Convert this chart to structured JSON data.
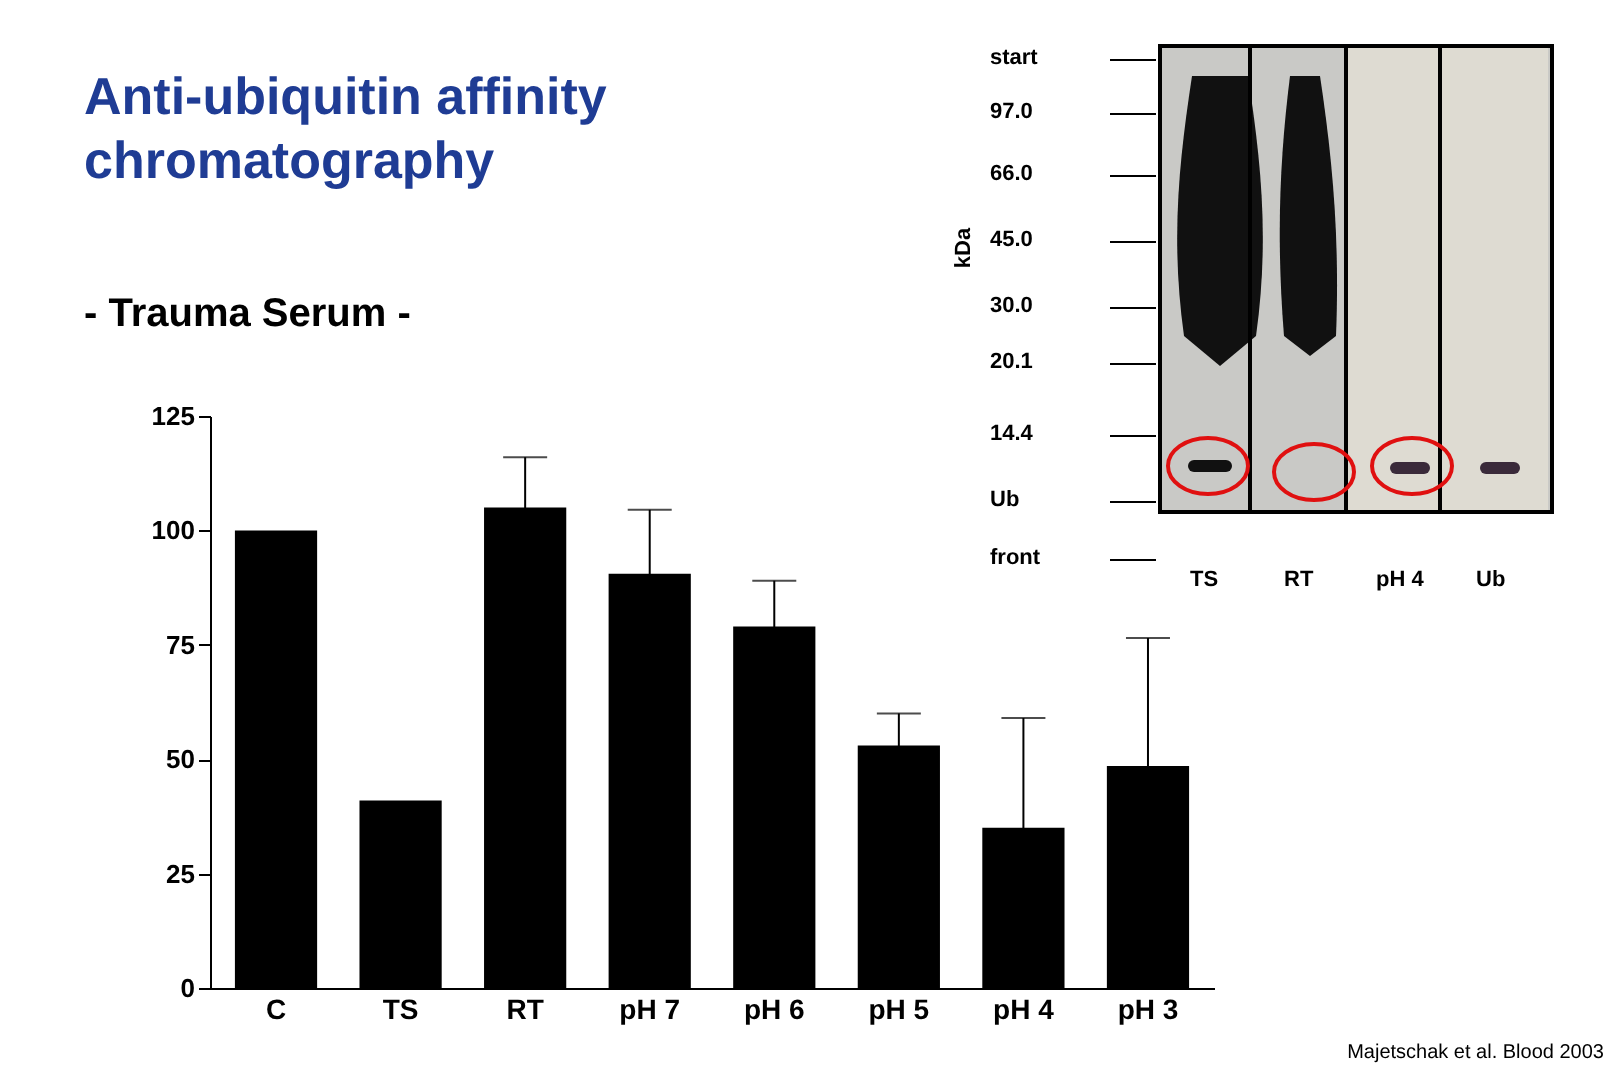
{
  "chart_data": [
    {
      "type": "bar",
      "title": "Anti-ubiquitin affinity chromatography",
      "subtitle": "- Trauma Serum -",
      "categories": [
        "C",
        "TS",
        "RT",
        "pH 7",
        "pH 6",
        "pH 5",
        "pH 4",
        "pH 3"
      ],
      "values": [
        100,
        41,
        105,
        90.5,
        79,
        53,
        35,
        48.5
      ],
      "errors": [
        null,
        null,
        11,
        14,
        10,
        7,
        24,
        28
      ],
      "color": "#000000",
      "ylim": [
        0,
        125
      ],
      "yticks": [
        0,
        25,
        50,
        75,
        100,
        125
      ],
      "grid": false,
      "annotations": [
        "Majetschak et al. Blood 2003"
      ]
    },
    {
      "type": "other",
      "ylabel": "kDa",
      "y_categories": [
        "start",
        "97.0",
        "66.0",
        "45.0",
        "30.0",
        "20.1",
        "14.4",
        "Ub",
        "front"
      ],
      "categories": [
        "TS",
        "RT",
        "pH 4",
        "Ub"
      ]
    }
  ]
}
